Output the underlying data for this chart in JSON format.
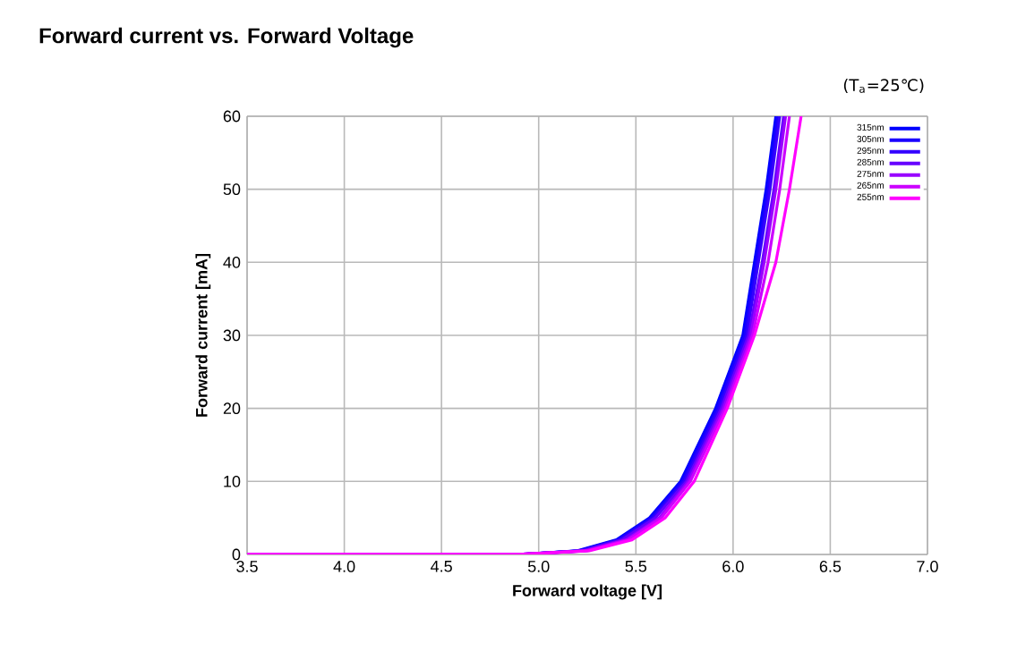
{
  "chart_data": {
    "type": "line",
    "title": "Forward  current vs. Forward Voltage",
    "xlabel": "Forward voltage [V]",
    "ylabel": "Forward current [mA]",
    "annotations": [
      "(T$_{a}$=25℃)"
    ],
    "xlim": [
      3.5,
      7.0
    ],
    "ylim": [
      0,
      60
    ],
    "xticks": [
      3.5,
      {
        "value": 4,
        "label": "4.0"
      },
      4.5,
      {
        "value": 5,
        "label": "5.0"
      },
      5.5,
      {
        "value": 6,
        "label": "6.0"
      },
      6.5,
      {
        "value": 7,
        "label": "7.0"
      }
    ],
    "yticks": [
      0,
      10,
      20,
      30,
      40,
      50,
      60
    ],
    "grid": true,
    "legend": "top right",
    "marker": "none",
    "line_style": "solid",
    "series": [
      {
        "name": "315nm",
        "color": "#0000ff",
        "x": [
          3.5,
          4.9,
          5.2,
          5.4,
          5.57,
          5.73,
          5.91,
          6.05,
          6.11,
          6.17,
          6.22
        ],
        "values": [
          0,
          0,
          0.5,
          2,
          5,
          10,
          20,
          30,
          40,
          50,
          60
        ]
      },
      {
        "name": "305nm",
        "color": "#1a00ff",
        "x": [
          3.5,
          4.9,
          5.21,
          5.41,
          5.58,
          5.74,
          5.92,
          6.06,
          6.12,
          6.18,
          6.23
        ],
        "values": [
          0,
          0,
          0.5,
          2,
          5,
          10,
          20,
          30,
          40,
          50,
          60
        ]
      },
      {
        "name": "295nm",
        "color": "#3300ff",
        "x": [
          3.5,
          4.9,
          5.22,
          5.42,
          5.59,
          5.75,
          5.93,
          6.07,
          6.13,
          6.19,
          6.24
        ],
        "values": [
          0,
          0,
          0.5,
          2,
          5,
          10,
          20,
          30,
          40,
          50,
          60
        ]
      },
      {
        "name": "285nm",
        "color": "#6600ff",
        "x": [
          3.5,
          4.9,
          5.23,
          5.43,
          5.6,
          5.76,
          5.94,
          6.08,
          6.15,
          6.21,
          6.26
        ],
        "values": [
          0,
          0,
          0.5,
          2,
          5,
          10,
          20,
          30,
          40,
          50,
          60
        ]
      },
      {
        "name": "275nm",
        "color": "#9900ff",
        "x": [
          3.5,
          4.9,
          5.24,
          5.45,
          5.62,
          5.77,
          5.95,
          6.09,
          6.16,
          6.22,
          6.27
        ],
        "values": [
          0,
          0,
          0.5,
          2,
          5,
          10,
          20,
          30,
          40,
          50,
          60
        ]
      },
      {
        "name": "265nm",
        "color": "#cc00ff",
        "x": [
          3.5,
          4.9,
          5.25,
          5.46,
          5.63,
          5.78,
          5.96,
          6.1,
          6.18,
          6.24,
          6.29
        ],
        "values": [
          0,
          0,
          0.5,
          2,
          5,
          10,
          20,
          30,
          40,
          50,
          60
        ]
      },
      {
        "name": "255nm",
        "color": "#ff00ff",
        "x": [
          3.5,
          4.9,
          5.26,
          5.48,
          5.65,
          5.8,
          5.97,
          6.11,
          6.22,
          6.29,
          6.35
        ],
        "values": [
          0,
          0,
          0.5,
          2,
          5,
          10,
          20,
          30,
          40,
          50,
          60
        ]
      }
    ]
  }
}
